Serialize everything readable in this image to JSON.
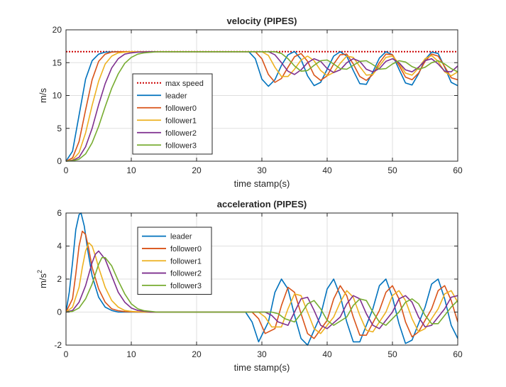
{
  "chart_data": [
    {
      "type": "line",
      "title": "velocity (PIPES)",
      "xlabel": "time stamp(s)",
      "ylabel": "m/s",
      "xlim": [
        0,
        60
      ],
      "ylim": [
        0,
        20
      ],
      "xticks": [
        0,
        10,
        20,
        30,
        40,
        50,
        60
      ],
      "yticks": [
        0,
        5,
        10,
        15,
        20
      ],
      "grid": true,
      "legend_position": "center-left",
      "series": [
        {
          "name": "max speed",
          "color": "#cc0000",
          "style": "dotted",
          "x": [
            0,
            60
          ],
          "y": [
            16.67,
            16.67
          ]
        },
        {
          "name": "leader",
          "color": "#0072BD",
          "x": [
            0,
            1,
            2,
            3,
            4,
            5,
            6,
            8,
            10,
            20,
            28,
            29,
            30,
            31,
            32,
            33,
            34,
            35,
            36,
            37,
            38,
            39,
            40,
            41,
            42,
            43,
            44,
            45,
            46,
            47,
            48,
            49,
            50,
            51,
            52,
            53,
            54,
            55,
            56,
            57,
            58,
            59,
            60
          ],
          "y": [
            0,
            1.5,
            7.0,
            12.5,
            15.3,
            16.3,
            16.6,
            16.67,
            16.67,
            16.67,
            16.67,
            15.6,
            12.5,
            11.4,
            12.4,
            14.6,
            16.2,
            16.7,
            15.5,
            13.0,
            11.5,
            12.0,
            14.0,
            16.0,
            16.67,
            16.0,
            13.8,
            11.8,
            11.7,
            13.6,
            15.7,
            16.67,
            16.2,
            14.0,
            11.9,
            11.6,
            13.3,
            15.5,
            16.6,
            16.4,
            14.3,
            12.0,
            11.5
          ]
        },
        {
          "name": "follower0",
          "color": "#D95319",
          "x": [
            0,
            1,
            2,
            3,
            4,
            5,
            6,
            7,
            8,
            10,
            20,
            29,
            30,
            31,
            32,
            33,
            34,
            35,
            36,
            37,
            38,
            39,
            40,
            41,
            42,
            43,
            44,
            45,
            46,
            47,
            48,
            49,
            50,
            51,
            52,
            53,
            54,
            55,
            56,
            57,
            58,
            59,
            60
          ],
          "y": [
            0,
            0.5,
            3.0,
            7.8,
            12.4,
            15.2,
            16.3,
            16.6,
            16.67,
            16.67,
            16.67,
            16.67,
            15.6,
            13.2,
            12.0,
            12.6,
            14.3,
            15.9,
            16.4,
            15.2,
            13.1,
            12.3,
            13.0,
            14.8,
            16.2,
            16.3,
            14.8,
            12.9,
            12.3,
            13.2,
            15.0,
            16.3,
            16.2,
            14.6,
            12.8,
            12.4,
            13.4,
            15.2,
            16.3,
            16.0,
            14.4,
            12.7,
            12.4
          ]
        },
        {
          "name": "follower1",
          "color": "#EDB120",
          "x": [
            0,
            1,
            2,
            3,
            4,
            5,
            6,
            7,
            8,
            9,
            10,
            12,
            20,
            30,
            31,
            32,
            33,
            34,
            35,
            36,
            37,
            38,
            39,
            40,
            41,
            42,
            43,
            44,
            45,
            46,
            47,
            48,
            49,
            50,
            51,
            52,
            53,
            54,
            55,
            56,
            57,
            58,
            59,
            60
          ],
          "y": [
            0,
            0.2,
            1.3,
            4.3,
            8.5,
            12.2,
            14.8,
            16.0,
            16.5,
            16.6,
            16.67,
            16.67,
            16.67,
            16.67,
            16.1,
            14.3,
            12.9,
            12.9,
            14.0,
            15.4,
            16.0,
            15.3,
            13.8,
            13.0,
            13.5,
            14.9,
            16.0,
            15.8,
            14.4,
            13.1,
            13.2,
            14.5,
            15.8,
            16.0,
            14.9,
            13.4,
            13.1,
            14.2,
            15.6,
            16.1,
            15.2,
            13.6,
            13.0,
            13.6
          ]
        },
        {
          "name": "follower2",
          "color": "#7E2F8E",
          "x": [
            0,
            1,
            2,
            3,
            4,
            5,
            6,
            7,
            8,
            9,
            10,
            11,
            13,
            20,
            31,
            32,
            33,
            34,
            35,
            36,
            37,
            38,
            39,
            40,
            41,
            42,
            43,
            44,
            45,
            46,
            47,
            48,
            49,
            50,
            51,
            52,
            53,
            54,
            55,
            56,
            57,
            58,
            59,
            60
          ],
          "y": [
            0,
            0.1,
            0.6,
            2.2,
            5.0,
            8.6,
            11.8,
            14.2,
            15.6,
            16.3,
            16.5,
            16.6,
            16.67,
            16.67,
            16.67,
            16.2,
            15.0,
            13.7,
            13.2,
            13.9,
            15.0,
            15.6,
            15.2,
            14.1,
            13.5,
            13.9,
            15.0,
            15.6,
            15.2,
            14.0,
            13.6,
            14.1,
            15.2,
            15.6,
            15.0,
            13.9,
            13.6,
            14.3,
            15.3,
            15.6,
            14.8,
            13.7,
            13.6,
            14.5
          ]
        },
        {
          "name": "follower3",
          "color": "#77AC30",
          "x": [
            0,
            1,
            2,
            3,
            4,
            5,
            6,
            7,
            8,
            9,
            10,
            11,
            12,
            14,
            20,
            32,
            33,
            34,
            35,
            36,
            37,
            38,
            39,
            40,
            41,
            42,
            43,
            44,
            45,
            46,
            47,
            48,
            49,
            50,
            51,
            52,
            53,
            54,
            55,
            56,
            57,
            58,
            59,
            60
          ],
          "y": [
            0,
            0.05,
            0.3,
            1.1,
            2.8,
            5.3,
            8.3,
            11.1,
            13.3,
            14.9,
            15.8,
            16.3,
            16.5,
            16.67,
            16.67,
            16.67,
            16.4,
            15.6,
            14.5,
            13.7,
            13.8,
            14.6,
            15.3,
            15.4,
            14.8,
            14.1,
            14.0,
            14.6,
            15.2,
            15.3,
            14.7,
            14.0,
            14.1,
            14.8,
            15.3,
            15.1,
            14.4,
            14.0,
            14.3,
            15.0,
            15.3,
            14.8,
            14.1,
            13.6
          ]
        }
      ]
    },
    {
      "type": "line",
      "title": "acceleration (PIPES)",
      "xlabel": "time stamp(s)",
      "ylabel": "m/s",
      "ylabel_superscript": "2",
      "xlim": [
        0,
        60
      ],
      "ylim": [
        -2,
        6
      ],
      "xticks": [
        0,
        10,
        20,
        30,
        40,
        50,
        60
      ],
      "yticks": [
        -2,
        0,
        2,
        4,
        6
      ],
      "grid": true,
      "legend_position": "top-left",
      "series": [
        {
          "name": "leader",
          "color": "#0072BD",
          "x": [
            0,
            0.5,
            1,
            1.5,
            2,
            2.3,
            2.8,
            3.3,
            4,
            5,
            6,
            7,
            8,
            10,
            20,
            27.5,
            28.5,
            29.5,
            31,
            32,
            33,
            34,
            35,
            36,
            37,
            39,
            40,
            41,
            42,
            43,
            44,
            45,
            47,
            48,
            49,
            50,
            51,
            52,
            53,
            55,
            56,
            57,
            58,
            59,
            60
          ],
          "y": [
            0,
            1.2,
            3.0,
            5.0,
            5.9,
            6.0,
            5.2,
            3.8,
            2.2,
            0.9,
            0.3,
            0.1,
            0,
            0,
            0,
            0,
            -0.6,
            -1.8,
            -0.6,
            1.2,
            2.0,
            1.4,
            -0.2,
            -1.6,
            -2.0,
            -0.2,
            1.4,
            2.0,
            1.0,
            -0.6,
            -1.8,
            -1.8,
            0.2,
            1.6,
            2.0,
            0.9,
            -0.7,
            -1.9,
            -1.7,
            0.3,
            1.7,
            2.0,
            0.8,
            -0.8,
            -1.6
          ]
        },
        {
          "name": "follower0",
          "color": "#D95319",
          "x": [
            0,
            1,
            1.5,
            2,
            2.5,
            3,
            3.5,
            4,
            5,
            6,
            7,
            8,
            9,
            11,
            20,
            28.5,
            29.5,
            30.5,
            32,
            33,
            34,
            35,
            36,
            37,
            38,
            40,
            41,
            42,
            43,
            44,
            45,
            46,
            48,
            49,
            50,
            51,
            52,
            53,
            54,
            56,
            57,
            58,
            59,
            60
          ],
          "y": [
            0,
            0.8,
            2.3,
            4.0,
            4.9,
            4.7,
            3.8,
            2.7,
            1.4,
            0.6,
            0.2,
            0.08,
            0.03,
            0,
            0,
            0,
            -0.4,
            -1.3,
            -1.0,
            0.4,
            1.5,
            1.2,
            -0.1,
            -1.3,
            -1.6,
            -0.5,
            0.8,
            1.6,
            1.0,
            -0.3,
            -1.4,
            -1.4,
            0.1,
            1.2,
            1.6,
            0.8,
            -0.6,
            -1.5,
            -1.2,
            0.2,
            1.3,
            1.6,
            0.7,
            -0.6
          ]
        },
        {
          "name": "follower1",
          "color": "#EDB120",
          "x": [
            0,
            1,
            2,
            2.5,
            3,
            3.5,
            4,
            4.5,
            5,
            6,
            7,
            8,
            9,
            10,
            12,
            20,
            29.5,
            30.5,
            31.5,
            33,
            34,
            35,
            36,
            37,
            38,
            39,
            41,
            42,
            43,
            44,
            45,
            46,
            47,
            49,
            50,
            51,
            52,
            53,
            54,
            55,
            57,
            58,
            59,
            60
          ],
          "y": [
            0,
            0.3,
            1.5,
            2.7,
            3.7,
            4.2,
            4.0,
            3.4,
            2.7,
            1.5,
            0.7,
            0.3,
            0.1,
            0.04,
            0,
            0,
            0,
            -0.3,
            -0.9,
            -0.9,
            0.2,
            1.1,
            1.0,
            0,
            -1.0,
            -1.3,
            -0.3,
            0.6,
            1.3,
            0.9,
            -0.2,
            -1.1,
            -1.2,
            0,
            1.0,
            1.3,
            0.7,
            -0.4,
            -1.2,
            -1.0,
            0.2,
            1.1,
            1.3,
            0.6
          ]
        },
        {
          "name": "follower2",
          "color": "#7E2F8E",
          "x": [
            0,
            1,
            2,
            3,
            3.5,
            4,
            4.5,
            5,
            6,
            7,
            8,
            9,
            10,
            11,
            13,
            20,
            30.5,
            31.5,
            32.5,
            34,
            35,
            36,
            37,
            38,
            39,
            40,
            42,
            43,
            44,
            45,
            46,
            47,
            48,
            50,
            51,
            52,
            53,
            54,
            55,
            56,
            58,
            59,
            60
          ],
          "y": [
            0,
            0.1,
            0.6,
            1.6,
            2.3,
            3.0,
            3.5,
            3.7,
            3.2,
            2.2,
            1.2,
            0.6,
            0.25,
            0.1,
            0,
            0,
            0,
            -0.2,
            -0.6,
            -0.8,
            0,
            0.8,
            0.9,
            0.1,
            -0.8,
            -1.0,
            -0.3,
            0.5,
            1.0,
            0.8,
            -0.1,
            -0.8,
            -1.0,
            0,
            0.8,
            1.0,
            0.6,
            -0.3,
            -0.9,
            -0.8,
            0.2,
            0.9,
            1.0
          ]
        },
        {
          "name": "follower3",
          "color": "#77AC30",
          "x": [
            0,
            1,
            2,
            3,
            4,
            4.5,
            5,
            5.5,
            6,
            7,
            8,
            9,
            10,
            11,
            12,
            14,
            20,
            31.5,
            32.5,
            33.5,
            35,
            36,
            37,
            38,
            39,
            40,
            41,
            43,
            44,
            45,
            46,
            47,
            48,
            49,
            51,
            52,
            53,
            54,
            55,
            56,
            57,
            59,
            60
          ],
          "y": [
            0,
            0.04,
            0.25,
            0.8,
            1.7,
            2.3,
            2.9,
            3.3,
            3.3,
            2.8,
            1.9,
            1.1,
            0.5,
            0.2,
            0.08,
            0,
            0,
            0,
            -0.1,
            -0.4,
            -0.6,
            -0.1,
            0.5,
            0.7,
            0.2,
            -0.5,
            -0.8,
            -0.3,
            0.4,
            0.8,
            0.7,
            0,
            -0.6,
            -0.8,
            0,
            0.6,
            0.8,
            0.5,
            -0.2,
            -0.7,
            -0.7,
            0.3,
            0.7
          ]
        }
      ]
    }
  ]
}
